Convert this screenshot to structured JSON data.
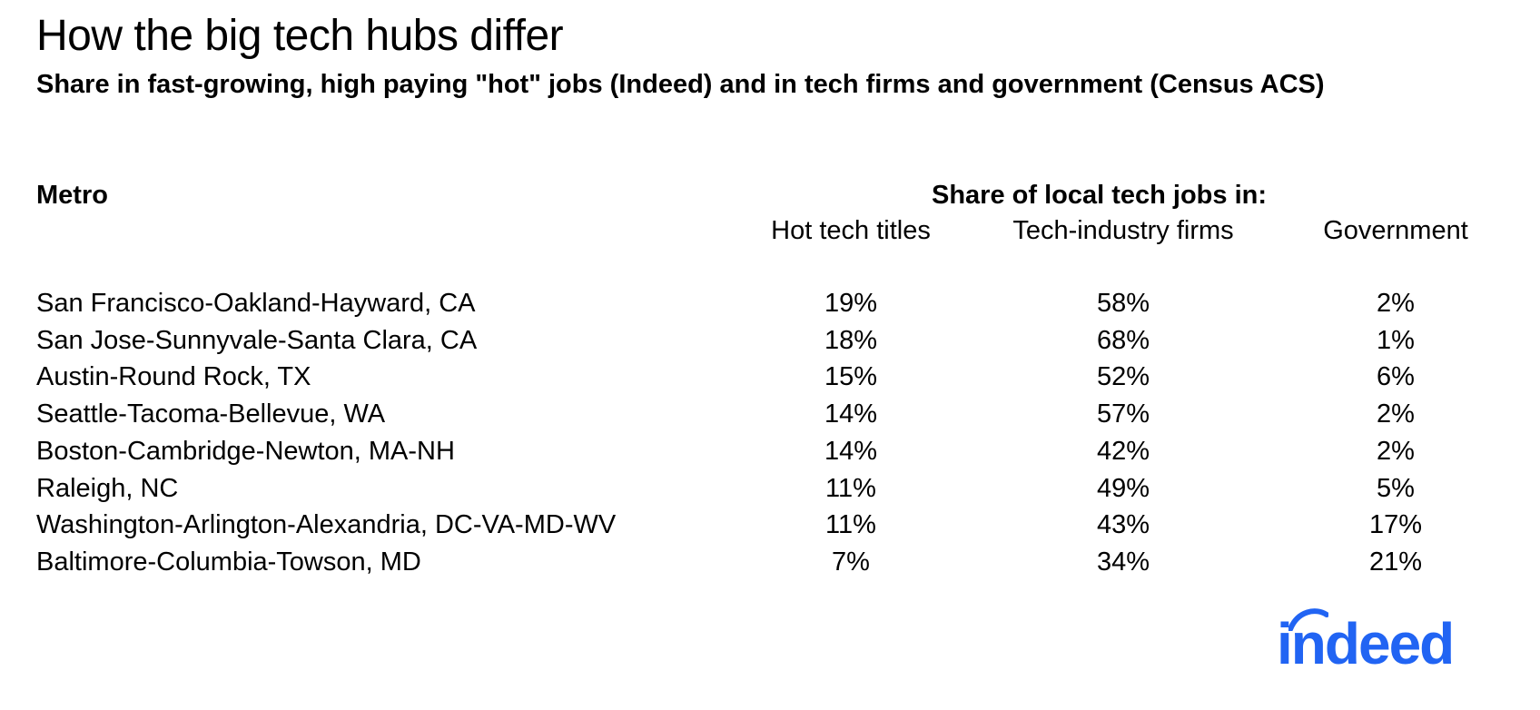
{
  "title": "How the big tech hubs differ",
  "subtitle": "Share in fast-growing, high paying \"hot\" jobs (Indeed) and in tech firms and government (Census ACS)",
  "colors": {
    "text": "#000000",
    "brand": "#2164f3"
  },
  "logo": {
    "text": "indeed"
  },
  "chart_data": {
    "type": "table",
    "row_header": "Metro",
    "column_group": "Share of local tech jobs in:",
    "columns": [
      "Hot tech titles",
      "Tech-industry firms",
      "Government"
    ],
    "rows": [
      {
        "metro": "San Francisco-Oakland-Hayward, CA",
        "values": [
          "19%",
          "58%",
          "2%"
        ]
      },
      {
        "metro": "San Jose-Sunnyvale-Santa Clara, CA",
        "values": [
          "18%",
          "68%",
          "1%"
        ]
      },
      {
        "metro": "Austin-Round Rock, TX",
        "values": [
          "15%",
          "52%",
          "6%"
        ]
      },
      {
        "metro": "Seattle-Tacoma-Bellevue, WA",
        "values": [
          "14%",
          "57%",
          "2%"
        ]
      },
      {
        "metro": "Boston-Cambridge-Newton, MA-NH",
        "values": [
          "14%",
          "42%",
          "2%"
        ]
      },
      {
        "metro": "Raleigh, NC",
        "values": [
          "11%",
          "49%",
          "5%"
        ]
      },
      {
        "metro": "Washington-Arlington-Alexandria, DC-VA-MD-WV",
        "values": [
          "11%",
          "43%",
          "17%"
        ]
      },
      {
        "metro": "Baltimore-Columbia-Towson, MD",
        "values": [
          "7%",
          "34%",
          "21%"
        ]
      }
    ]
  }
}
